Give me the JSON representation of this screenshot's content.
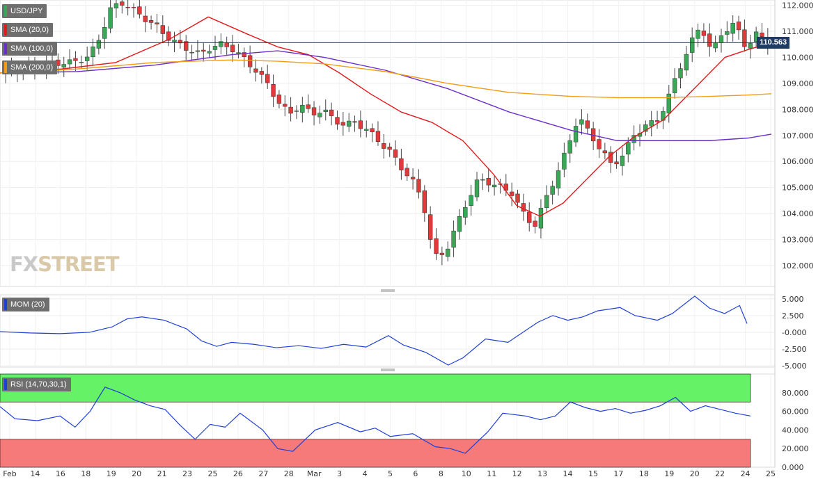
{
  "watermark": {
    "fx": "FX",
    "street": "STREET"
  },
  "legends": {
    "symbol": "USD/JPY",
    "sma20": "SMA (20,0)",
    "sma100": "SMA (100,0)",
    "sma200": "SMA (200,0)",
    "mom": "MOM (20)",
    "rsi": "RSI (14,70,30,1)"
  },
  "colors": {
    "bull": "#3aa757",
    "bear": "#e23a3a",
    "sma20": "#e31a1c",
    "sma100": "#6a2ecb",
    "sma200": "#f39c12",
    "mom": "#1f3fd6",
    "rsi": "#1f3fd6",
    "rsi_overbought": "#66f266",
    "rsi_oversold": "#f77a7a",
    "last_price_line": "#1f3a63"
  },
  "chart_data": [
    {
      "type": "candlestick",
      "title": "USD/JPY",
      "ylim": [
        101.2,
        112.2
      ],
      "y_ticks": [
        "112.000",
        "111.000",
        "110.000",
        "109.000",
        "108.000",
        "107.000",
        "106.000",
        "105.000",
        "104.000",
        "103.000",
        "102.000"
      ],
      "last_price": "110.563",
      "x_ticks": [
        "Feb",
        "14",
        "16",
        "18",
        "19",
        "20",
        "21",
        "23",
        "25",
        "26",
        "27",
        "28",
        "Mar",
        "3",
        "4",
        "5",
        "6",
        "8",
        "10",
        "11",
        "12",
        "13",
        "14",
        "15",
        "17",
        "18",
        "19",
        "20",
        "22",
        "24",
        "25"
      ],
      "ohlc_path": [
        [
          0,
          109.4
        ],
        [
          1,
          109.5
        ],
        [
          2,
          109.55
        ],
        [
          3,
          109.6
        ],
        [
          4,
          109.7
        ],
        [
          5,
          109.8
        ],
        [
          6,
          109.75
        ],
        [
          7,
          109.9
        ],
        [
          8,
          110.0
        ],
        [
          9,
          110.8
        ],
        [
          10,
          111.9
        ],
        [
          11,
          112.1
        ],
        [
          12,
          111.8
        ],
        [
          13,
          111.5
        ],
        [
          14,
          111.2
        ],
        [
          15,
          110.8
        ],
        [
          16,
          110.5
        ],
        [
          17,
          110.3
        ],
        [
          18,
          110.1
        ],
        [
          19,
          110.4
        ],
        [
          20,
          110.5
        ],
        [
          21,
          110.3
        ],
        [
          22,
          109.9
        ],
        [
          23,
          109.5
        ],
        [
          24,
          109.0
        ],
        [
          25,
          108.3
        ],
        [
          26,
          107.8
        ],
        [
          27,
          108.2
        ],
        [
          28,
          107.8
        ],
        [
          29,
          108.0
        ],
        [
          30,
          107.6
        ],
        [
          31,
          107.4
        ],
        [
          32,
          107.5
        ],
        [
          33,
          107.2
        ],
        [
          34,
          106.8
        ],
        [
          35,
          106.4
        ],
        [
          36,
          105.8
        ],
        [
          37,
          105.3
        ],
        [
          38,
          104.5
        ],
        [
          39,
          102.3
        ],
        [
          40,
          102.5
        ],
        [
          41,
          103.5
        ],
        [
          42,
          104.5
        ],
        [
          43,
          105.3
        ],
        [
          44,
          105.2
        ],
        [
          45,
          105.0
        ],
        [
          46,
          104.8
        ],
        [
          47,
          104.0
        ],
        [
          48,
          103.5
        ],
        [
          49,
          104.5
        ],
        [
          50,
          105.5
        ],
        [
          51,
          106.5
        ],
        [
          52,
          107.8
        ],
        [
          53,
          107.0
        ],
        [
          54,
          106.5
        ],
        [
          55,
          105.8
        ],
        [
          56,
          106.3
        ],
        [
          57,
          107.0
        ],
        [
          58,
          107.4
        ],
        [
          59,
          107.5
        ],
        [
          60,
          108.4
        ],
        [
          61,
          109.5
        ],
        [
          62,
          110.5
        ],
        [
          63,
          111.2
        ],
        [
          64,
          110.2
        ],
        [
          65,
          111.0
        ],
        [
          66,
          111.3
        ],
        [
          67,
          110.4
        ],
        [
          68,
          110.9
        ],
        [
          69,
          110.56
        ]
      ],
      "candle_count": 132,
      "series": [
        {
          "name": "SMA (20,0)",
          "x": [
            0,
            0.08,
            0.15,
            0.22,
            0.27,
            0.32,
            0.36,
            0.4,
            0.44,
            0.48,
            0.52,
            0.56,
            0.6,
            0.64,
            0.67,
            0.7,
            0.73,
            0.76,
            0.79,
            0.82,
            0.86,
            0.9,
            0.94,
            0.97,
            1.0
          ],
          "values": [
            109.4,
            109.55,
            109.8,
            110.7,
            111.55,
            110.9,
            110.4,
            110.1,
            109.4,
            108.6,
            107.9,
            107.5,
            106.8,
            105.5,
            104.3,
            103.9,
            104.4,
            105.3,
            106.2,
            106.9,
            107.6,
            108.8,
            110.0,
            110.3,
            110.55
          ]
        },
        {
          "name": "SMA (100,0)",
          "x": [
            0,
            0.1,
            0.2,
            0.3,
            0.36,
            0.42,
            0.5,
            0.58,
            0.66,
            0.74,
            0.8,
            0.86,
            0.92,
            0.97,
            1.0
          ],
          "values": [
            109.4,
            109.45,
            109.7,
            110.1,
            110.25,
            110.0,
            109.5,
            108.8,
            107.9,
            107.2,
            106.8,
            106.8,
            106.8,
            106.9,
            107.05
          ]
        },
        {
          "name": "SMA (200,0)",
          "x": [
            0,
            0.1,
            0.2,
            0.3,
            0.36,
            0.42,
            0.5,
            0.58,
            0.66,
            0.74,
            0.8,
            0.86,
            0.92,
            0.97,
            1.0
          ],
          "values": [
            109.4,
            109.55,
            109.8,
            109.9,
            109.85,
            109.75,
            109.45,
            109.0,
            108.65,
            108.5,
            108.45,
            108.45,
            108.5,
            108.55,
            108.6
          ]
        }
      ]
    },
    {
      "type": "line",
      "title": "MOM (20)",
      "ylim": [
        -5.2,
        5.6
      ],
      "y_ticks": [
        "5.000",
        "2.500",
        "-0.000",
        "-2.500",
        "-5.000"
      ],
      "series": [
        {
          "name": "MOM (20)",
          "x": [
            0,
            0.04,
            0.08,
            0.12,
            0.15,
            0.17,
            0.19,
            0.22,
            0.25,
            0.27,
            0.29,
            0.31,
            0.34,
            0.37,
            0.4,
            0.43,
            0.46,
            0.49,
            0.52,
            0.54,
            0.57,
            0.6,
            0.62,
            0.65,
            0.68,
            0.72,
            0.74,
            0.76,
            0.78,
            0.8,
            0.83,
            0.85,
            0.88,
            0.9,
            0.93,
            0.95,
            0.97,
            0.99,
            1.0
          ],
          "values": [
            0.1,
            -0.1,
            -0.2,
            0.0,
            0.8,
            2.0,
            2.3,
            1.8,
            0.5,
            -1.3,
            -2.1,
            -1.5,
            -1.8,
            -2.3,
            -2.0,
            -2.4,
            -1.8,
            -2.2,
            -0.5,
            -1.9,
            -3.0,
            -4.9,
            -3.8,
            -1.0,
            -1.5,
            1.5,
            2.5,
            1.8,
            2.3,
            3.2,
            3.7,
            2.5,
            1.8,
            2.8,
            5.4,
            3.6,
            2.8,
            4.0,
            1.3
          ]
        }
      ]
    },
    {
      "type": "line",
      "title": "RSI (14,70,30,1)",
      "ylim": [
        0,
        100
      ],
      "y_ticks": [
        "80.000",
        "60.000",
        "40.000",
        "20.000",
        "0.000"
      ],
      "overbought": 70,
      "oversold": 30,
      "series": [
        {
          "name": "RSI (14,70,30,1)",
          "x": [
            0,
            0.02,
            0.05,
            0.08,
            0.1,
            0.12,
            0.14,
            0.16,
            0.18,
            0.2,
            0.22,
            0.24,
            0.26,
            0.28,
            0.3,
            0.32,
            0.35,
            0.37,
            0.39,
            0.42,
            0.45,
            0.48,
            0.5,
            0.52,
            0.55,
            0.58,
            0.6,
            0.62,
            0.65,
            0.67,
            0.7,
            0.72,
            0.74,
            0.76,
            0.78,
            0.8,
            0.82,
            0.84,
            0.86,
            0.88,
            0.9,
            0.92,
            0.94,
            0.96,
            0.98,
            1.0
          ],
          "values": [
            65,
            52,
            50,
            55,
            43,
            60,
            86,
            80,
            72,
            66,
            62,
            45,
            30,
            46,
            43,
            58,
            40,
            20,
            17,
            40,
            48,
            38,
            42,
            33,
            36,
            22,
            20,
            15,
            38,
            58,
            55,
            51,
            55,
            70,
            64,
            60,
            63,
            58,
            61,
            66,
            75,
            60,
            66,
            62,
            58,
            55
          ]
        }
      ]
    }
  ]
}
